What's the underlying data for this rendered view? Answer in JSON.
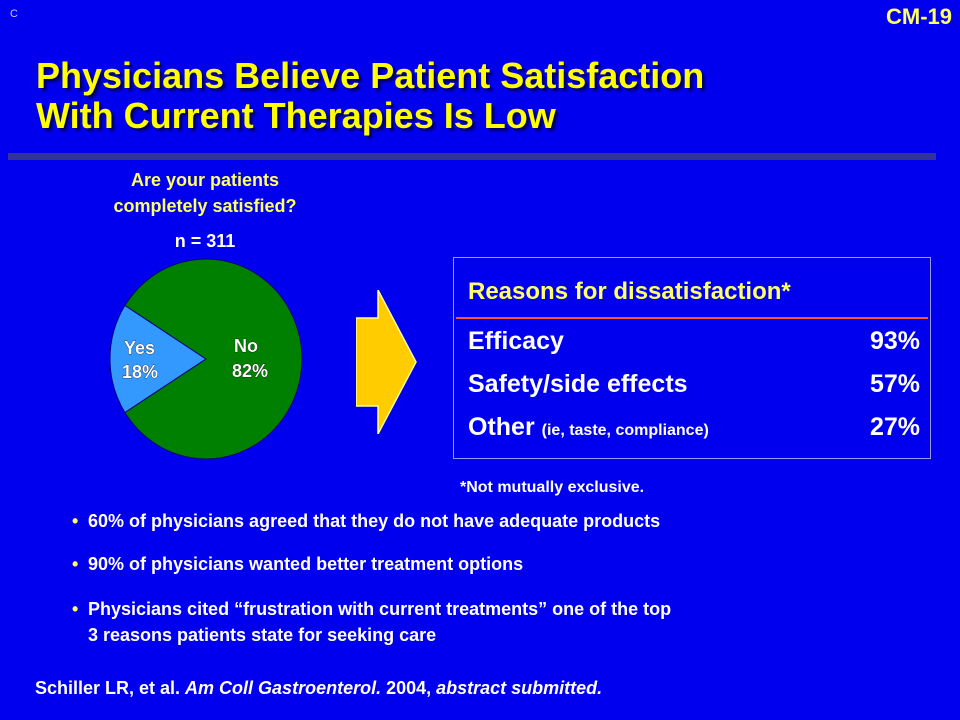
{
  "corner_mark": "C",
  "slide_number": "CM-19",
  "title_line1": "Physicians Believe Patient Satisfaction",
  "title_line2": "With Current Therapies Is Low",
  "colors": {
    "background": "#0000ee",
    "title": "#ffff00",
    "pie_no": "#008000",
    "pie_yes": "#3399ff",
    "arrow": "#ffcc00",
    "accent_rule": "#ff5533"
  },
  "chart_data": {
    "type": "pie",
    "title": "Are your patients completely satisfied?",
    "title_line1": "Are your patients",
    "title_line2": "completely satisfied?",
    "subtitle": "n = 311",
    "slices": [
      {
        "label": "No",
        "value": 82,
        "value_label": "82%",
        "color": "#008000"
      },
      {
        "label": "Yes",
        "value": 18,
        "value_label": "18%",
        "color": "#3399ff"
      }
    ]
  },
  "reasons": {
    "title": "Reasons for dissatisfaction*",
    "rows": [
      {
        "label": "Efficacy",
        "qualifier": "",
        "value": "93%"
      },
      {
        "label": "Safety/side effects",
        "qualifier": "",
        "value": "57%"
      },
      {
        "label": "Other",
        "qualifier": "(ie, taste, compliance)",
        "value": "27%"
      }
    ],
    "footnote": "*Not mutually exclusive."
  },
  "bullets": [
    {
      "line1": "60% of physicians agreed that they do not have adequate products",
      "line2": ""
    },
    {
      "line1": "90% of physicians wanted better treatment options",
      "line2": ""
    },
    {
      "line1": "Physicians cited “frustration with current treatments” one of the top",
      "line2": "3 reasons patients state for seeking care"
    }
  ],
  "bullet_glyph": "•",
  "citation": {
    "authors": "Schiller LR, et al. ",
    "journal": "Am Coll Gastroenterol.",
    "year": " 2004, ",
    "status": "abstract submitted."
  }
}
